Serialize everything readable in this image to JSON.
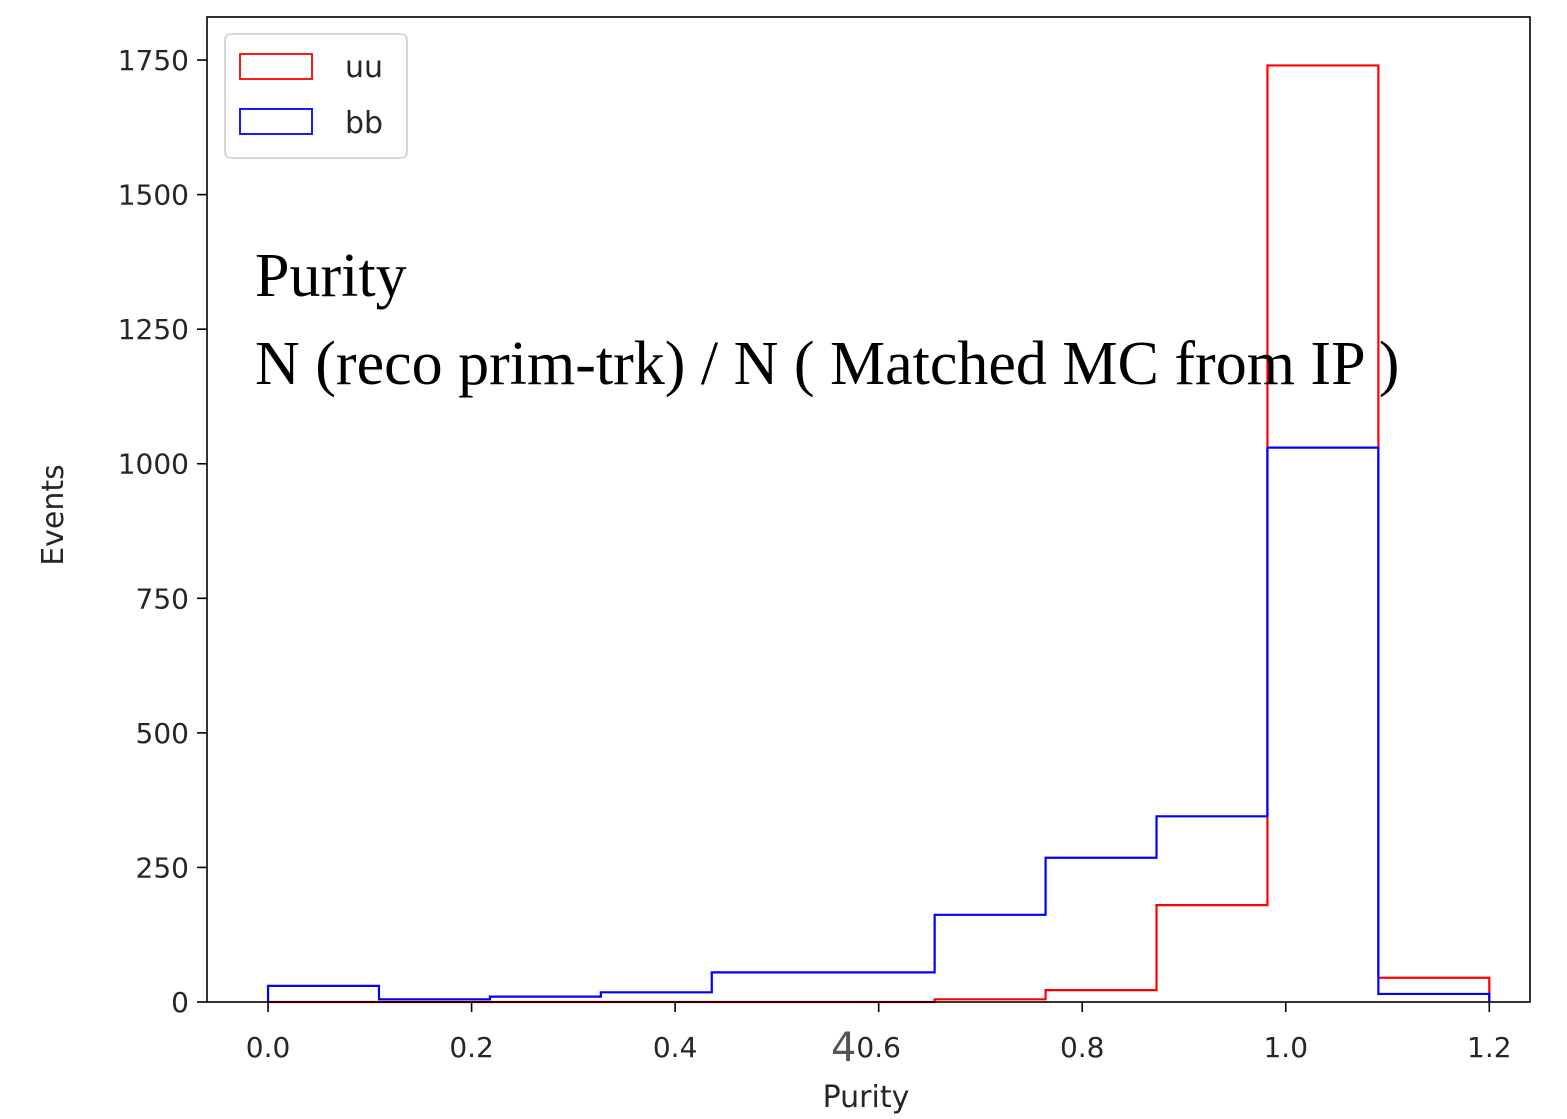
{
  "chart_data": {
    "type": "histogram",
    "xlabel": "Purity",
    "ylabel": "Events",
    "xlim": [
      -0.06,
      1.24
    ],
    "ylim": [
      0,
      1830
    ],
    "x_ticks": [
      0.0,
      0.2,
      0.4,
      0.6,
      0.8,
      1.0,
      1.2
    ],
    "x_tick_labels": [
      "0.0",
      "0.2",
      "0.4",
      "0.6",
      "0.8",
      "1.0",
      "1.2"
    ],
    "y_ticks": [
      0,
      250,
      500,
      750,
      1000,
      1250,
      1500,
      1750
    ],
    "y_tick_labels": [
      "0",
      "250",
      "500",
      "750",
      "1000",
      "1250",
      "1500",
      "1750"
    ],
    "bin_edges": [
      0.0,
      0.109,
      0.218,
      0.327,
      0.436,
      0.545,
      0.655,
      0.764,
      0.873,
      0.982,
      1.091,
      1.2
    ],
    "legend_position": "upper-left",
    "grid": false,
    "series": [
      {
        "name": "uu",
        "color": "#ff0000",
        "values": [
          0,
          0,
          0,
          0,
          0,
          0,
          5,
          22,
          180,
          1740,
          45
        ]
      },
      {
        "name": "bb",
        "color": "#0000ff",
        "values": [
          30,
          5,
          10,
          18,
          55,
          55,
          162,
          268,
          345,
          1030,
          15
        ]
      }
    ]
  },
  "overlay": {
    "line1": "Purity",
    "line2": "N (reco prim-trk) / N  ( Matched MC from IP )"
  },
  "page_number": "4"
}
